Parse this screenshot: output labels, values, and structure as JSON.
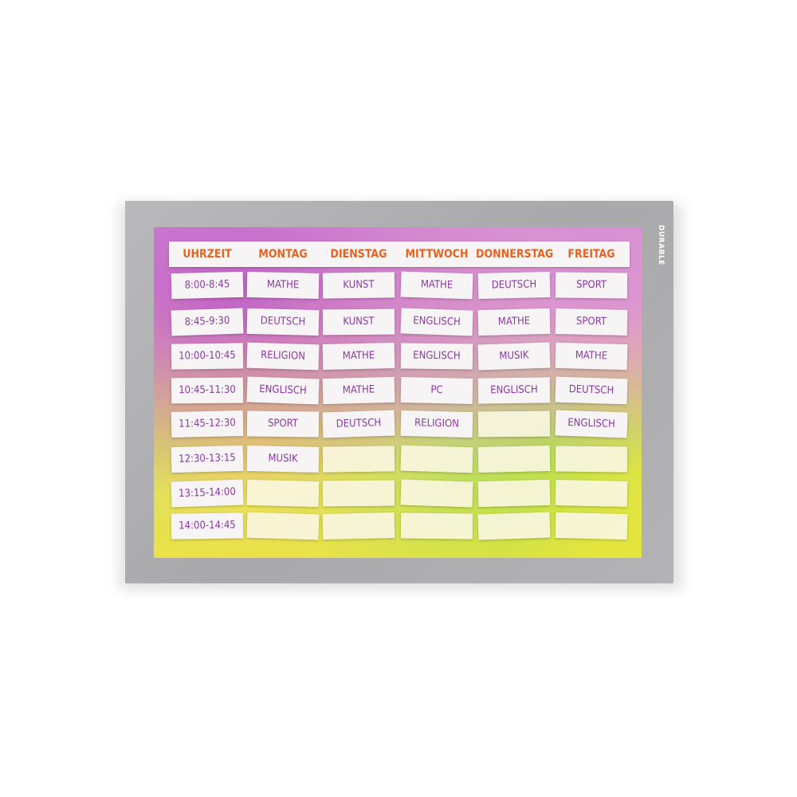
{
  "brand": "DURABLE",
  "headers": [
    "Uhrzeit",
    "Montag",
    "Dienstag",
    "Mittwoch",
    "Donnerstag",
    "Freitag"
  ],
  "rows": [
    {
      "time": "8:00-8:45",
      "cells": [
        "Mathe",
        "Kunst",
        "Mathe",
        "Deutsch",
        "Sport"
      ]
    },
    {
      "time": "8:45-9:30",
      "cells": [
        "Deutsch",
        "Kunst",
        "Englisch",
        "Mathe",
        "Sport"
      ]
    },
    {
      "time": "10:00-10:45",
      "cells": [
        "Religion",
        "Mathe",
        "Englisch",
        "Musik",
        "Mathe"
      ]
    },
    {
      "time": "10:45-11:30",
      "cells": [
        "Englisch",
        "Mathe",
        "PC",
        "Englisch",
        "Deutsch"
      ]
    },
    {
      "time": "11:45-12:30",
      "cells": [
        "Sport",
        "Deutsch",
        "Religion",
        "",
        "Englisch"
      ]
    },
    {
      "time": "12:30-13:15",
      "cells": [
        "Musik",
        "",
        "",
        "",
        ""
      ]
    },
    {
      "time": "13:15-14:00",
      "cells": [
        "",
        "",
        "",
        "",
        ""
      ]
    },
    {
      "time": "14:00-14:45",
      "cells": [
        "",
        "",
        "",
        "",
        ""
      ]
    }
  ],
  "colors": {
    "header_text": "#e8621e",
    "cell_text": "#8a3aa0",
    "frame": "#aeaeb0"
  }
}
